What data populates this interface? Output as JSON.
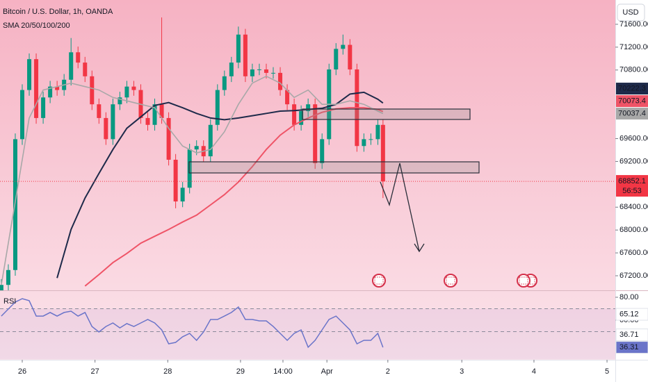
{
  "chart_data": [
    {
      "type": "candlestick",
      "title": "Bitcoin / U.S. Dollar, 1h, OANDA",
      "subtitle": "SMA 20/50/100/200",
      "currency": "USD",
      "countdown": "56:53",
      "up_color": "#089981",
      "down_color": "#f23645",
      "x": [
        -6.9,
        -4.6,
        -2.3,
        0,
        2.3,
        4.6,
        6.9,
        9.2,
        11.5,
        13.8,
        16.1,
        18.4,
        20.7,
        23,
        25.3,
        27.6,
        29.9,
        32.2,
        34.5,
        36.8,
        39.1,
        41.4,
        43.7,
        46,
        48.3,
        50.6,
        52.9,
        55.2,
        57.5,
        59.8,
        62.1,
        64.4,
        66.7,
        69,
        71.3,
        73.6,
        75.9,
        78.2,
        80.5,
        82.8,
        85.1,
        87.4,
        89.7,
        92,
        94.3,
        96.6,
        98.9,
        101.2,
        103.5,
        105.8,
        108.1,
        110.4,
        112.7,
        115,
        117.3,
        119
      ],
      "open": [
        66900,
        67040,
        67300,
        69590,
        70450,
        70990,
        69960,
        70320,
        70510,
        70450,
        70630,
        71110,
        70930,
        70690,
        70200,
        69960,
        69590,
        70200,
        70320,
        70510,
        70450,
        69960,
        69840,
        70200,
        69960,
        69230,
        68500,
        68740,
        69410,
        69470,
        69290,
        69840,
        70450,
        70690,
        70930,
        71420,
        70690,
        70810,
        70810,
        70750,
        70750,
        70450,
        70200,
        69840,
        70080,
        70200,
        69170,
        69590,
        70810,
        71170,
        71240,
        70810,
        69470,
        69590,
        69590,
        69840
      ],
      "high": [
        67140,
        67400,
        69690,
        70550,
        71090,
        71090,
        70420,
        70610,
        70610,
        70730,
        71360,
        71210,
        71030,
        70790,
        70300,
        70060,
        70300,
        70420,
        70610,
        70610,
        70550,
        70060,
        70300,
        71720,
        70060,
        69330,
        68840,
        69510,
        69570,
        69570,
        69940,
        70550,
        70790,
        71030,
        71560,
        71520,
        70910,
        70910,
        70910,
        70850,
        70850,
        70550,
        70300,
        70180,
        70300,
        70300,
        69690,
        70910,
        71270,
        71420,
        71340,
        70910,
        69690,
        69690,
        69940,
        69940
      ],
      "low": [
        66800,
        66940,
        67200,
        69490,
        70350,
        69860,
        69860,
        70220,
        70350,
        70350,
        70530,
        70830,
        70590,
        70100,
        69860,
        69490,
        69490,
        70100,
        70220,
        70350,
        69860,
        69740,
        69740,
        69860,
        69130,
        68380,
        68400,
        68640,
        69310,
        69190,
        69190,
        69740,
        70350,
        70590,
        70830,
        70590,
        70590,
        70710,
        70650,
        70650,
        70350,
        70100,
        69740,
        69740,
        69980,
        69070,
        69070,
        69490,
        70710,
        71070,
        70710,
        69370,
        69370,
        69490,
        69490,
        68560
      ],
      "close": [
        67040,
        67300,
        69590,
        70450,
        70990,
        69960,
        70320,
        70510,
        70450,
        70630,
        71110,
        70930,
        70690,
        70200,
        69960,
        69590,
        70200,
        70320,
        70510,
        70450,
        69960,
        69840,
        70200,
        69960,
        69230,
        68500,
        68740,
        69410,
        69470,
        69290,
        69840,
        70450,
        70690,
        70930,
        71420,
        70690,
        70810,
        70810,
        70750,
        70750,
        70450,
        70200,
        69840,
        70080,
        70200,
        69170,
        69590,
        70810,
        71170,
        71240,
        70810,
        69470,
        69590,
        69590,
        69840,
        68852.1
      ],
      "series": [
        {
          "color": "#1e2a4a",
          "x": [
            11.5,
            16.1,
            20.7,
            25.3,
            29.9,
            34.5,
            39.1,
            43.7,
            48.3,
            52.9,
            57.5,
            62.1,
            66.7,
            71.3,
            75.9,
            80.5,
            85.1,
            89.7,
            94.3,
            98.9,
            103.5,
            108.1,
            112.7,
            117.3,
            119
          ],
          "values": [
            67160,
            68010,
            68560,
            68990,
            69410,
            69780,
            69980,
            70180,
            70230,
            70140,
            70040,
            69960,
            69930,
            69960,
            70000,
            70040,
            70080,
            70090,
            70110,
            70130,
            70200,
            70380,
            70410,
            70290,
            70222.3
          ]
        },
        {
          "color": "#ef5467",
          "x": [
            20.7,
            25.3,
            29.9,
            34.5,
            39.1,
            43.7,
            48.3,
            52.9,
            57.5,
            62.1,
            66.7,
            71.3,
            75.9,
            80.5,
            85.1,
            89.7,
            94.3,
            98.9,
            103.5,
            108.1,
            112.7,
            117.3,
            119
          ],
          "values": [
            67020,
            67220,
            67430,
            67590,
            67770,
            67890,
            68010,
            68140,
            68260,
            68440,
            68620,
            68840,
            69110,
            69410,
            69660,
            69840,
            69960,
            70060,
            70120,
            70140,
            70140,
            70110,
            70073.4
          ]
        },
        {
          "color": "#a8a8a8",
          "x": [
            -6.9,
            -2.3,
            2.3,
            6.9,
            11.5,
            16.1,
            20.7,
            25.3,
            29.9,
            34.5,
            39.1,
            43.7,
            48.3,
            52.9,
            57.5,
            62.1,
            66.7,
            71.3,
            75.9,
            80.5,
            85.1,
            89.7,
            94.3,
            98.9,
            103.5,
            108.1,
            112.7,
            117.3,
            119
          ],
          "values": [
            67040,
            68500,
            69960,
            70450,
            70510,
            70570,
            70510,
            70450,
            70320,
            70260,
            70200,
            70140,
            69780,
            69470,
            69350,
            69410,
            69720,
            70200,
            70570,
            70690,
            70570,
            70320,
            70450,
            70200,
            70200,
            70260,
            70200,
            70080,
            70037.4
          ]
        }
      ],
      "xlim": [
        -7.34,
        195.64
      ],
      "xticks": [
        {
          "value": 0,
          "label": "26"
        },
        {
          "value": 24,
          "label": "27"
        },
        {
          "value": 48,
          "label": "28"
        },
        {
          "value": 72,
          "label": "29"
        },
        {
          "value": 86,
          "label": "14:00"
        },
        {
          "value": 100.5,
          "label": "Apr"
        },
        {
          "value": 120.6,
          "label": "2"
        },
        {
          "value": 145,
          "label": "3"
        },
        {
          "value": 168.8,
          "label": "4"
        },
        {
          "value": 192.9,
          "label": "5"
        }
      ],
      "ylim": [
        66945,
        72025
      ],
      "yticks": [
        {
          "value": 71600,
          "label": "71600.00"
        },
        {
          "value": 71200,
          "label": "71200.00"
        },
        {
          "value": 70800,
          "label": "70800.00"
        },
        {
          "value": 69600,
          "label": "69600.00"
        },
        {
          "value": 69200,
          "label": "69200.00"
        },
        {
          "value": 68400,
          "label": "68400.00"
        },
        {
          "value": 68000,
          "label": "68000.00"
        },
        {
          "value": 67600,
          "label": "67600.00"
        },
        {
          "value": 67200,
          "label": "67200.00"
        }
      ]
    },
    {
      "type": "line",
      "title": "RSI",
      "color": "#6a74c9",
      "x": [
        -6.9,
        -4.6,
        -2.3,
        0,
        2.3,
        4.6,
        6.9,
        9.2,
        11.5,
        13.8,
        16.1,
        18.4,
        20.7,
        23,
        25.3,
        27.6,
        29.9,
        32.2,
        34.5,
        36.8,
        39.1,
        41.4,
        43.7,
        46,
        48.3,
        50.6,
        52.9,
        55.2,
        57.5,
        59.8,
        62.1,
        64.4,
        66.7,
        69,
        71.3,
        73.6,
        75.9,
        78.2,
        80.5,
        82.8,
        85.1,
        87.4,
        89.7,
        92,
        94.3,
        96.6,
        98.9,
        101.2,
        103.5,
        105.8,
        108.1,
        110.4,
        112.7,
        115,
        117.3,
        119
      ],
      "values": [
        63.6,
        69.7,
        75.8,
        78.8,
        77.0,
        63.6,
        63.6,
        66.7,
        63.6,
        66.7,
        67.9,
        63.6,
        66.7,
        54.5,
        49.7,
        54.5,
        57.6,
        53.3,
        57.0,
        54.5,
        57.6,
        60.6,
        57.6,
        51.5,
        39.4,
        40.6,
        45.5,
        48.5,
        42.4,
        49.7,
        60.6,
        60.6,
        63.6,
        66.7,
        71.5,
        60.6,
        60.6,
        59.4,
        59.4,
        54.5,
        48.5,
        42.4,
        48.5,
        51.5,
        36.4,
        42.4,
        51.5,
        60.6,
        63.6,
        57.6,
        51.5,
        39.4,
        42.4,
        42.4,
        48.5,
        36.31
      ],
      "ylim": [
        27.27,
        86.06
      ],
      "yticks": [
        {
          "value": 80,
          "label": "80.00"
        },
        {
          "value": 60,
          "label": "60.00"
        }
      ],
      "bands": [
        70,
        50
      ],
      "levels": [
        65.12,
        36.71
      ]
    }
  ]
}
